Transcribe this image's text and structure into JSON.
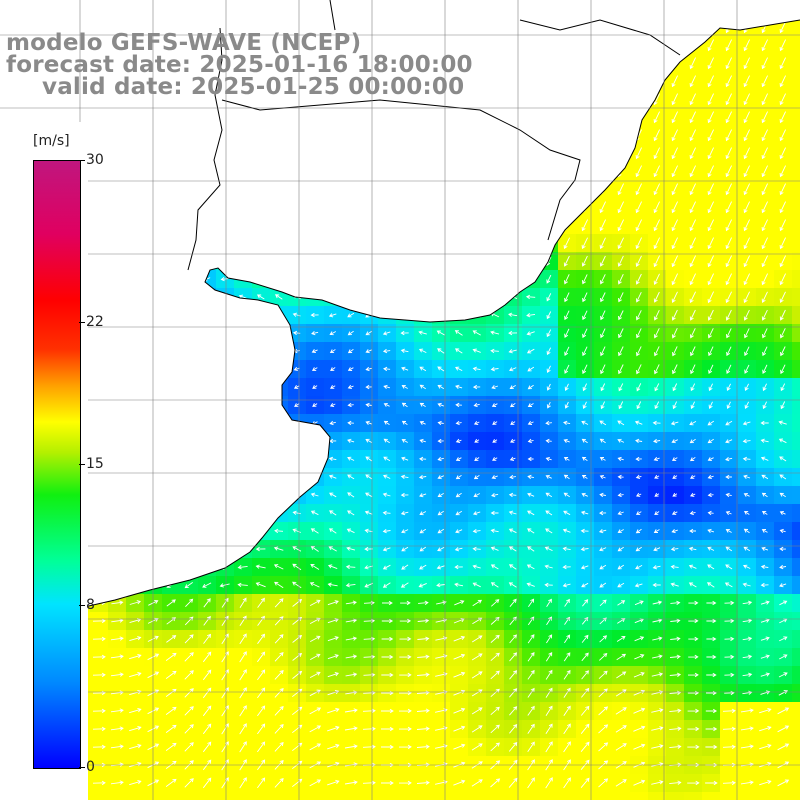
{
  "title": {
    "line1": "modelo GEFS-WAVE (NCEP)",
    "line2": "forecast date: 2025-01-16 18:00:00",
    "line3": "valid date: 2025-01-25 00:00:00"
  },
  "colorbar": {
    "unit": "[m/s]",
    "min": 0,
    "max": 30,
    "ticks": [
      {
        "label": "30",
        "value": 30
      },
      {
        "label": "22",
        "value": 22
      },
      {
        "label": "15",
        "value": 15
      },
      {
        "label": "8",
        "value": 8
      },
      {
        "label": "0",
        "value": 0
      }
    ]
  },
  "colors": {
    "background": "#ffffff",
    "coastline": "#000000",
    "grid": "#808080",
    "arrows": "#ffffff",
    "title_text": "#8a8a8a"
  },
  "field": {
    "variable": "wind speed",
    "units": "m/s"
  }
}
